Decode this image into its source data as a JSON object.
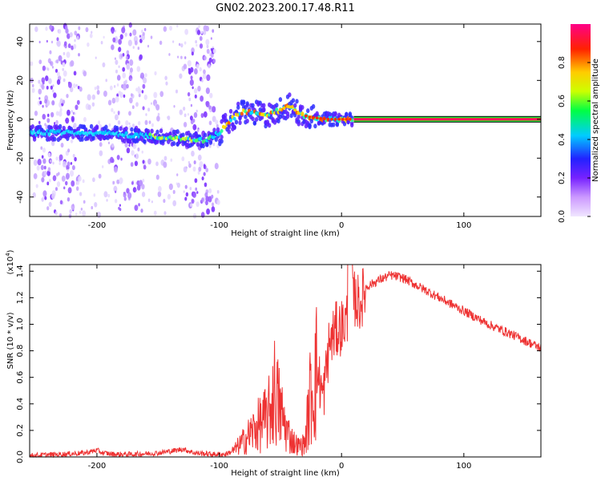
{
  "title": "GN02.2023.200.17.48.R11",
  "chart_data": [
    {
      "type": "heatmap",
      "xlabel": "Height of straight line (km)",
      "ylabel": "Frequency (Hz)",
      "xlim": [
        -255,
        163
      ],
      "ylim": [
        -50,
        49
      ],
      "xticks": [
        -200,
        -100,
        0,
        100
      ],
      "xtick_labels": [
        "-200",
        "-100",
        "0",
        "100"
      ],
      "yticks": [
        -40,
        -20,
        0,
        20,
        40
      ],
      "ytick_labels": [
        "-40",
        "-20",
        "0",
        "20",
        "40"
      ],
      "colorbar": {
        "label": "Normalized spectral amplitude",
        "range": [
          0,
          1
        ],
        "ticks": [
          0.0,
          0.2,
          0.4,
          0.6,
          0.8
        ],
        "tick_labels": [
          "0.0",
          "0.2",
          "0.4",
          "0.6",
          "0.8"
        ],
        "colors": [
          "#f0e6ff",
          "#9933ff",
          "#3333ff",
          "#00bbff",
          "#00ff66",
          "#ccff00",
          "#ffdd00",
          "#ff6600",
          "#ff0000",
          "#ff0088"
        ]
      },
      "ridge": {
        "x": [
          -255,
          -200,
          -150,
          -110,
          -100,
          -90,
          -80,
          -70,
          -60,
          -50,
          -42,
          -35,
          -25,
          -10,
          0,
          163
        ],
        "freq": [
          -7,
          -7,
          -9,
          -11,
          -7,
          0,
          4,
          3,
          2,
          5,
          7,
          3,
          1,
          0,
          0,
          0
        ]
      },
      "grid": false
    },
    {
      "type": "line",
      "xlabel": "Height of straight line (km)",
      "ylabel": "SNR (10 * v/v)",
      "y_multiplier": "(x10",
      "y_multiplier_exp": "4",
      "y_multiplier_close": ")",
      "xlim": [
        -255,
        163
      ],
      "ylim": [
        0,
        1.45
      ],
      "xticks": [
        -200,
        -100,
        0,
        100
      ],
      "xtick_labels": [
        "-200",
        "-100",
        "0",
        "100"
      ],
      "yticks": [
        0,
        0.2,
        0.4,
        0.6,
        0.8,
        1.0,
        1.2,
        1.4
      ],
      "ytick_labels": [
        "0.0",
        "0.2",
        "0.4",
        "0.6",
        "0.8",
        "1.0",
        "1.2",
        "1.4"
      ],
      "series": [
        {
          "color": "#ee3333",
          "x": [
            -255,
            -230,
            -210,
            -200,
            -195,
            -185,
            -170,
            -150,
            -135,
            -130,
            -120,
            -105,
            -95,
            -88,
            -80,
            -70,
            -60,
            -55,
            -50,
            -45,
            -40,
            -35,
            -30,
            -25,
            -20,
            -15,
            -10,
            -5,
            0,
            5,
            10,
            15,
            20,
            30,
            40,
            50,
            60,
            80,
            100,
            120,
            140,
            163
          ],
          "y": [
            0.01,
            0.02,
            0.03,
            0.05,
            0.03,
            0.02,
            0.02,
            0.03,
            0.05,
            0.06,
            0.03,
            0.02,
            0.02,
            0.05,
            0.12,
            0.22,
            0.3,
            0.5,
            0.35,
            0.2,
            0.12,
            0.08,
            0.1,
            0.5,
            0.65,
            0.45,
            0.85,
            0.95,
            0.98,
            1.05,
            1.2,
            1.15,
            1.28,
            1.33,
            1.37,
            1.35,
            1.3,
            1.2,
            1.1,
            1.0,
            0.92,
            0.82
          ]
        }
      ],
      "grid": false
    }
  ]
}
